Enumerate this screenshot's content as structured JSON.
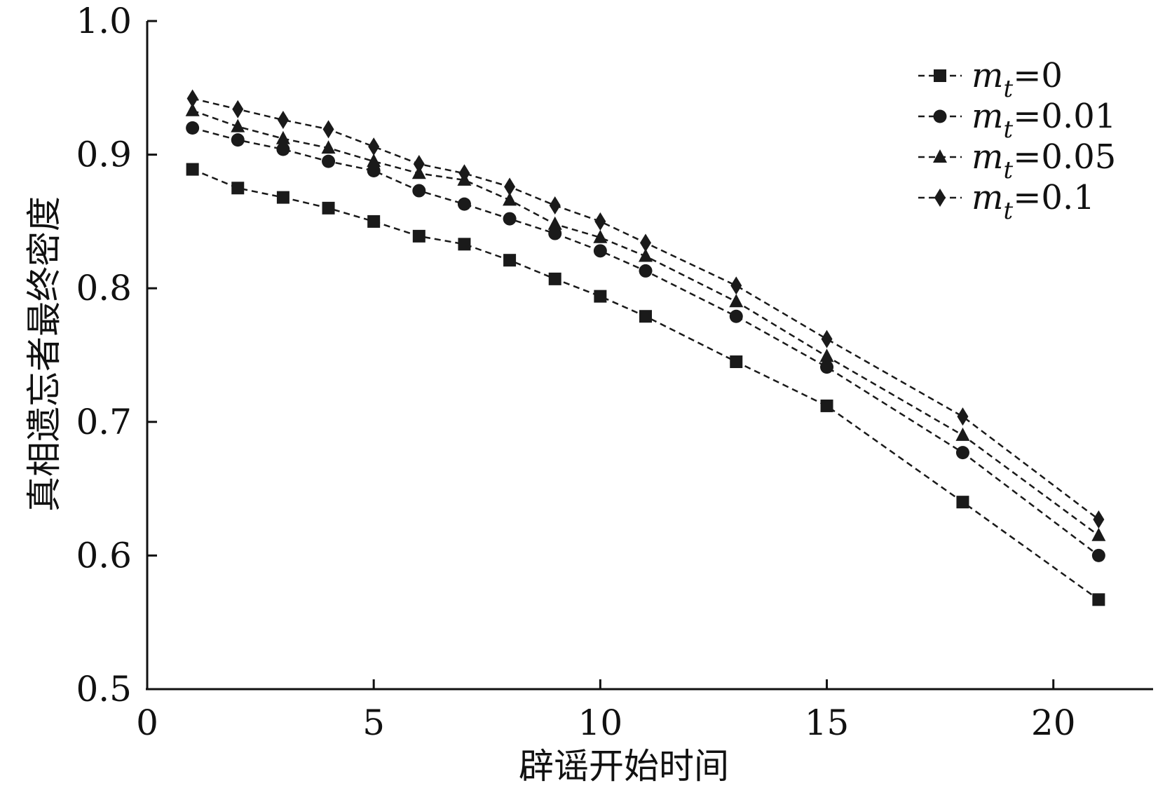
{
  "chart_data": {
    "type": "line",
    "xlabel": "辟谣开始时间",
    "ylabel": "真相遗忘者最终密度",
    "xlim": [
      0,
      22
    ],
    "ylim": [
      0.5,
      1.0
    ],
    "xticks": [
      0,
      5,
      10,
      15,
      20
    ],
    "yticks": [
      0.5,
      0.6,
      0.7,
      0.8,
      0.9,
      1.0
    ],
    "xtick_labels": [
      "0",
      "5",
      "10",
      "15",
      "20"
    ],
    "ytick_labels": [
      "0.5",
      "0.6",
      "0.7",
      "0.8",
      "0.9",
      "1.0"
    ],
    "grid": false,
    "legend_position": "top-right",
    "line_style": "dashed",
    "color": "#1a1a1a",
    "x": [
      1,
      2,
      3,
      4,
      5,
      6,
      7,
      8,
      9,
      10,
      11,
      13,
      15,
      18,
      21
    ],
    "series": [
      {
        "var": "m",
        "sub": "t",
        "eq": "=0",
        "marker": "square",
        "values": [
          0.889,
          0.875,
          0.868,
          0.86,
          0.85,
          0.839,
          0.833,
          0.821,
          0.807,
          0.794,
          0.779,
          0.745,
          0.712,
          0.64,
          0.567
        ]
      },
      {
        "var": "m",
        "sub": "t",
        "eq": "=0.01",
        "marker": "circle",
        "values": [
          0.92,
          0.911,
          0.904,
          0.895,
          0.888,
          0.873,
          0.863,
          0.852,
          0.841,
          0.828,
          0.813,
          0.779,
          0.741,
          0.677,
          0.6
        ]
      },
      {
        "var": "m",
        "sub": "t",
        "eq": "=0.05",
        "marker": "triangle",
        "values": [
          0.933,
          0.921,
          0.912,
          0.905,
          0.895,
          0.886,
          0.881,
          0.866,
          0.848,
          0.838,
          0.824,
          0.79,
          0.749,
          0.69,
          0.615
        ]
      },
      {
        "var": "m",
        "sub": "t",
        "eq": "=0.1",
        "marker": "diamond",
        "values": [
          0.942,
          0.934,
          0.926,
          0.919,
          0.906,
          0.893,
          0.886,
          0.876,
          0.862,
          0.85,
          0.834,
          0.802,
          0.762,
          0.704,
          0.627
        ]
      }
    ]
  }
}
